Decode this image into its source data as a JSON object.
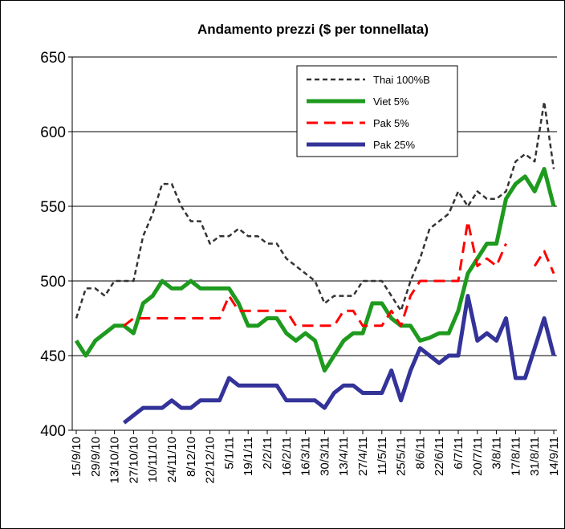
{
  "chart_data": {
    "type": "line",
    "title": "Andamento prezzi ($ per tonnellata)",
    "categories": [
      "15/9/10",
      null,
      "29/9/10",
      null,
      "13/10/10",
      null,
      "27/10/10",
      null,
      "10/11/10",
      null,
      "24/11/10",
      null,
      "8/12/10",
      null,
      "22/12/10",
      null,
      "5/1/11",
      null,
      "19/1/11",
      null,
      "2/2/11",
      null,
      "16/2/11",
      null,
      "16/3/11",
      null,
      "30/3/11",
      null,
      "13/4/11",
      null,
      "27/4/11",
      null,
      "11/5/11",
      null,
      "25/5/11",
      null,
      "8/6/11",
      null,
      "22/6/11",
      null,
      "6/7/11",
      null,
      "20/7/11",
      null,
      "3/8/11",
      null,
      "17/8/11",
      null,
      "31/8/11",
      null,
      "14/9/11"
    ],
    "series": [
      {
        "name": "Thai 100%B",
        "color": "#333333",
        "dashed": true,
        "values": [
          475,
          495,
          495,
          490,
          500,
          500,
          500,
          530,
          545,
          565,
          565,
          550,
          540,
          540,
          525,
          530,
          530,
          535,
          530,
          530,
          525,
          525,
          515,
          510,
          505,
          500,
          485,
          490,
          490,
          490,
          500,
          500,
          500,
          490,
          480,
          500,
          515,
          535,
          540,
          545,
          560,
          550,
          560,
          555,
          555,
          560,
          580,
          585,
          580,
          620,
          575
        ]
      },
      {
        "name": "Viet 5%",
        "color": "#1e9a1e",
        "dashed": false,
        "values": [
          460,
          450,
          460,
          465,
          470,
          470,
          465,
          485,
          490,
          500,
          495,
          495,
          500,
          495,
          495,
          495,
          495,
          485,
          470,
          470,
          475,
          475,
          465,
          460,
          465,
          460,
          440,
          450,
          460,
          465,
          465,
          485,
          485,
          475,
          470,
          470,
          460,
          462,
          465,
          465,
          480,
          505,
          515,
          525,
          525,
          555,
          565,
          570,
          560,
          575,
          550
        ]
      },
      {
        "name": "Pak 5%",
        "color": "#ff0000",
        "dashed": true,
        "values": [
          null,
          null,
          null,
          null,
          null,
          470,
          475,
          475,
          475,
          475,
          475,
          475,
          475,
          475,
          475,
          475,
          490,
          480,
          480,
          480,
          480,
          480,
          480,
          470,
          470,
          470,
          470,
          470,
          480,
          480,
          470,
          470,
          470,
          480,
          470,
          490,
          500,
          500,
          500,
          500,
          500,
          540,
          510,
          515,
          510,
          525,
          null,
          null,
          510,
          520,
          505
        ]
      },
      {
        "name": "Pak 25%",
        "color": "#333399",
        "dashed": false,
        "values": [
          null,
          null,
          null,
          null,
          null,
          405,
          410,
          415,
          415,
          415,
          420,
          415,
          415,
          420,
          420,
          420,
          435,
          430,
          430,
          430,
          430,
          430,
          420,
          420,
          420,
          420,
          415,
          425,
          430,
          430,
          425,
          425,
          425,
          440,
          420,
          440,
          455,
          450,
          445,
          450,
          450,
          490,
          460,
          465,
          460,
          475,
          435,
          435,
          455,
          475,
          450
        ]
      }
    ],
    "ylim": [
      400,
      650
    ],
    "yticks": [
      400,
      450,
      500,
      550,
      600,
      650
    ],
    "grid": true,
    "legend": "upper right"
  }
}
